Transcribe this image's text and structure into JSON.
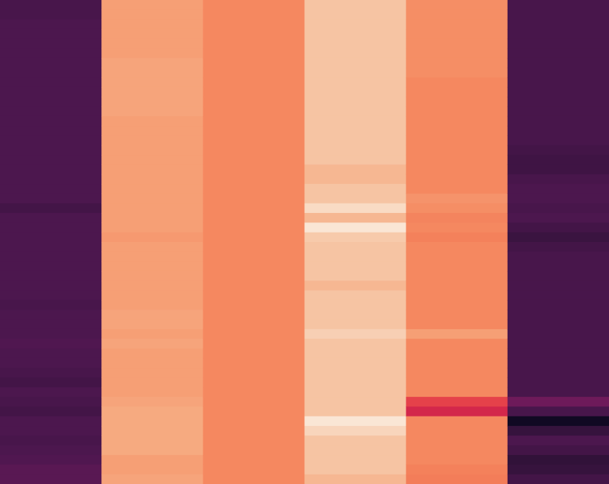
{
  "chart_data": {
    "type": "heatmap",
    "colormap": "rocket",
    "n_columns": 6,
    "n_rows": 50,
    "value_range": [
      0,
      1
    ],
    "grid": false,
    "legend": "none",
    "columns": [
      {
        "name": "",
        "values": [
          0.21,
          0.21,
          0.22,
          0.22,
          0.22,
          0.22,
          0.22,
          0.22,
          0.22,
          0.22,
          0.22,
          0.22,
          0.22,
          0.22,
          0.22,
          0.22,
          0.22,
          0.22,
          0.22,
          0.22,
          0.22,
          0.2,
          0.22,
          0.22,
          0.22,
          0.22,
          0.22,
          0.22,
          0.22,
          0.22,
          0.22,
          0.21,
          0.22,
          0.22,
          0.22,
          0.23,
          0.22,
          0.22,
          0.21,
          0.2,
          0.22,
          0.21,
          0.2,
          0.22,
          0.22,
          0.21,
          0.22,
          0.23,
          0.25,
          0.25
        ]
      },
      {
        "name": "",
        "values": [
          0.76,
          0.76,
          0.76,
          0.76,
          0.76,
          0.76,
          0.77,
          0.77,
          0.77,
          0.77,
          0.77,
          0.77,
          0.76,
          0.76,
          0.76,
          0.76,
          0.76,
          0.76,
          0.76,
          0.76,
          0.76,
          0.76,
          0.76,
          0.76,
          0.75,
          0.76,
          0.76,
          0.76,
          0.76,
          0.76,
          0.76,
          0.76,
          0.77,
          0.77,
          0.76,
          0.77,
          0.76,
          0.76,
          0.76,
          0.76,
          0.76,
          0.77,
          0.78,
          0.78,
          0.78,
          0.78,
          0.78,
          0.76,
          0.76,
          0.77
        ]
      },
      {
        "name": "",
        "values": [
          0.72,
          0.72,
          0.72,
          0.72,
          0.72,
          0.72,
          0.72,
          0.72,
          0.72,
          0.72,
          0.72,
          0.72,
          0.72,
          0.72,
          0.72,
          0.72,
          0.72,
          0.72,
          0.72,
          0.72,
          0.72,
          0.72,
          0.72,
          0.72,
          0.72,
          0.72,
          0.72,
          0.72,
          0.72,
          0.72,
          0.72,
          0.72,
          0.72,
          0.72,
          0.72,
          0.72,
          0.72,
          0.72,
          0.72,
          0.72,
          0.72,
          0.72,
          0.72,
          0.72,
          0.72,
          0.72,
          0.72,
          0.72,
          0.72,
          0.72
        ]
      },
      {
        "name": "",
        "values": [
          0.8,
          0.8,
          0.8,
          0.8,
          0.8,
          0.8,
          0.8,
          0.8,
          0.8,
          0.8,
          0.8,
          0.8,
          0.8,
          0.8,
          0.8,
          0.8,
          0.8,
          0.79,
          0.79,
          0.8,
          0.8,
          0.84,
          0.79,
          0.86,
          0.81,
          0.8,
          0.8,
          0.8,
          0.8,
          0.79,
          0.8,
          0.8,
          0.8,
          0.8,
          0.82,
          0.8,
          0.8,
          0.8,
          0.8,
          0.8,
          0.8,
          0.8,
          0.8,
          0.86,
          0.83,
          0.8,
          0.8,
          0.8,
          0.8,
          0.79
        ]
      },
      {
        "name": "",
        "values": [
          0.73,
          0.73,
          0.73,
          0.73,
          0.73,
          0.73,
          0.73,
          0.73,
          0.72,
          0.72,
          0.72,
          0.72,
          0.72,
          0.72,
          0.72,
          0.72,
          0.72,
          0.72,
          0.72,
          0.72,
          0.74,
          0.73,
          0.71,
          0.72,
          0.7,
          0.72,
          0.72,
          0.72,
          0.72,
          0.72,
          0.72,
          0.72,
          0.72,
          0.72,
          0.76,
          0.72,
          0.72,
          0.72,
          0.72,
          0.72,
          0.72,
          0.58,
          0.52,
          0.72,
          0.72,
          0.72,
          0.72,
          0.72,
          0.7,
          0.69
        ]
      },
      {
        "name": "",
        "values": [
          0.21,
          0.21,
          0.21,
          0.21,
          0.21,
          0.21,
          0.21,
          0.21,
          0.21,
          0.21,
          0.21,
          0.21,
          0.21,
          0.21,
          0.21,
          0.2,
          0.19,
          0.19,
          0.21,
          0.22,
          0.22,
          0.21,
          0.22,
          0.2,
          0.18,
          0.2,
          0.21,
          0.21,
          0.21,
          0.21,
          0.21,
          0.21,
          0.21,
          0.21,
          0.21,
          0.21,
          0.21,
          0.21,
          0.21,
          0.21,
          0.21,
          0.3,
          0.21,
          0.05,
          0.17,
          0.22,
          0.2,
          0.16,
          0.17,
          0.2
        ]
      }
    ]
  }
}
